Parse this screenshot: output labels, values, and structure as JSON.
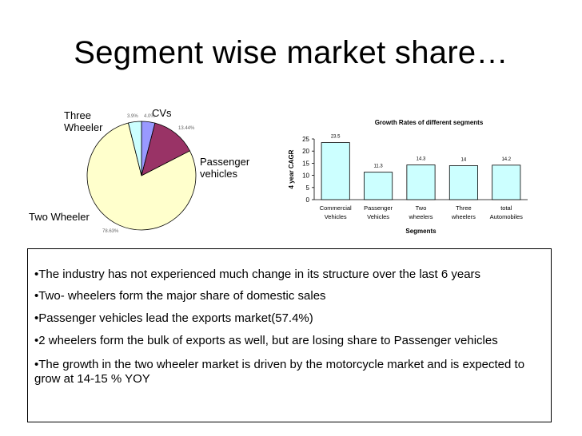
{
  "slide": {
    "title": "Segment wise market share…"
  },
  "chart_data": [
    {
      "type": "pie",
      "labels": [
        "CVs",
        "Passenger vehicles",
        "Two Wheeler",
        "Three Wheeler"
      ],
      "values": [
        4.0,
        13.44,
        78.63,
        3.9
      ],
      "data_labels": [
        "4.0%",
        "13.44%",
        "78.63%",
        "3.9%"
      ],
      "colors": [
        "#9999ff",
        "#993366",
        "#ffffcc",
        "#ccffff"
      ]
    },
    {
      "type": "bar",
      "title": "Growth Rates of different segments",
      "categories": [
        "Commercial Vehicles",
        "Passenger Vehicles",
        "Two wheelers",
        "Three wheelers",
        "total Automobiles"
      ],
      "category_lines": [
        [
          "Commercial",
          "Vehicles"
        ],
        [
          "Passenger",
          "Vehicles"
        ],
        [
          "Two",
          "wheelers"
        ],
        [
          "Three",
          "wheelers"
        ],
        [
          "total",
          "Automobiles"
        ]
      ],
      "values": [
        23.5,
        11.3,
        14.3,
        14,
        14.2
      ],
      "xlabel": "Segments",
      "ylabel": "4 year CAGR",
      "ylim": [
        0,
        25
      ],
      "yticks": [
        0,
        5,
        10,
        15,
        20,
        25
      ],
      "bar_color": "#ccffff",
      "grid": false
    }
  ],
  "bullets": [
    "•The industry has not experienced much change in its structure over the last 6 years",
    "•Two- wheelers form the major share of domestic sales",
    "•Passenger vehicles lead the exports market(57.4%)",
    "•2 wheelers form the bulk of exports as well, but are losing share to Passenger vehicles",
    "•The growth in the two wheeler market is driven by the motorcycle market and is expected to grow at 14-15 % YOY"
  ]
}
